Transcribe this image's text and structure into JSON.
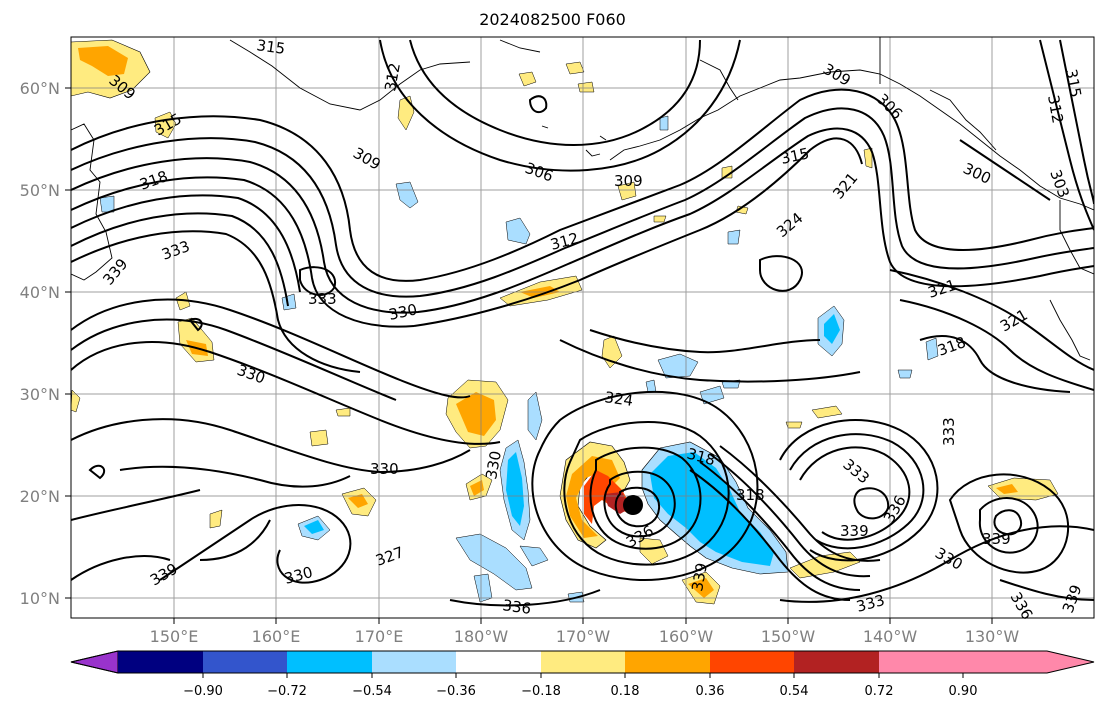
{
  "title": "2024082500 F060",
  "lat_labels": [
    "60°N",
    "50°N",
    "40°N",
    "30°N",
    "20°N",
    "10°N"
  ],
  "lon_labels": [
    "150°E",
    "160°E",
    "170°E",
    "180°W",
    "170°W",
    "160°W",
    "150°W",
    "140°W",
    "130°W"
  ],
  "colorbar": {
    "colors": [
      "#9933cc",
      "#000080",
      "#3355cc",
      "#00bfff",
      "#aadeff",
      "#ffffff",
      "#ffeb80",
      "#ffa500",
      "#ff4500",
      "#b22222",
      "#ff88aa"
    ],
    "tick_labels": [
      "−0.90",
      "−0.72",
      "−0.54",
      "−0.36",
      "−0.18",
      "0.18",
      "0.36",
      "0.54",
      "0.72",
      "0.90"
    ]
  },
  "contour_labels": [
    "315",
    "312",
    "309",
    "315",
    "318",
    "333",
    "339",
    "309",
    "306",
    "309",
    "312",
    "333",
    "330",
    "330",
    "330",
    "327",
    "330",
    "339",
    "336",
    "324",
    "318",
    "336",
    "330",
    "339",
    "318",
    "315",
    "324",
    "321",
    "306",
    "309",
    "300",
    "303",
    "315",
    "312",
    "321",
    "321",
    "318",
    "333",
    "333",
    "339",
    "336",
    "330",
    "333",
    "336",
    "339",
    "339"
  ],
  "storm_center": "storm-center"
}
